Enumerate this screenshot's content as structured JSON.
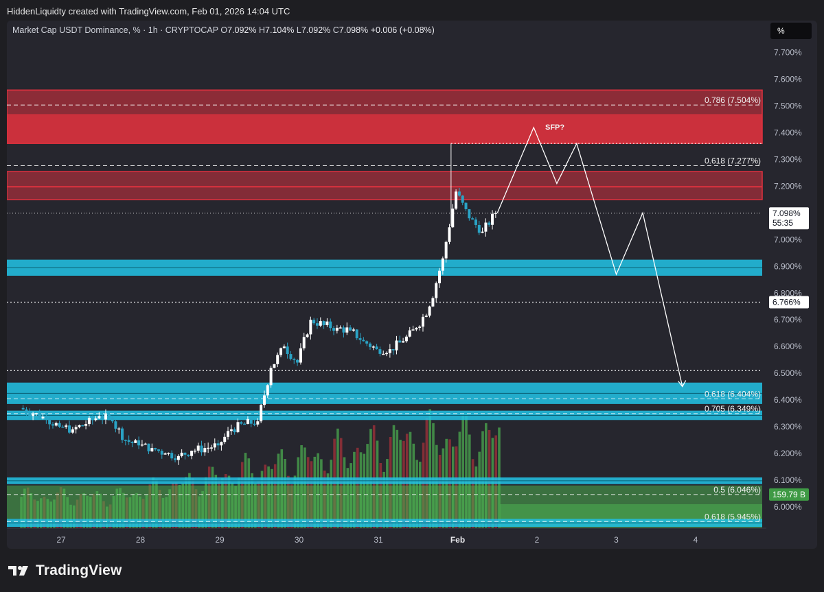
{
  "header": {
    "author_line": "HiddenLiquidty created with TradingView.com, Feb 01, 2026 14:04 UTC"
  },
  "legend": {
    "symbol": "Market Cap USDT Dominance, % · 1h · CRYPTOCAP",
    "o_label": "O",
    "o_value": "7.092%",
    "h_label": "H",
    "h_value": "7.104%",
    "l_label": "L",
    "l_value": "7.092%",
    "c_label": "C",
    "c_value": "7.098%",
    "change": "+0.006 (+0.08%)"
  },
  "unit_button": "%",
  "footer": {
    "brand": "TradingView"
  },
  "colors": {
    "up": "#ffffff",
    "down": "#2aa3c5",
    "resistance": "#e0313f",
    "support": "#22c4e6",
    "volume_up": "#4caf50",
    "volume_down": "#a8323a",
    "background": "#26262e"
  },
  "chart_data": {
    "type": "candlestick",
    "x_ticks": [
      "27",
      "28",
      "29",
      "30",
      "31",
      "Feb",
      "2",
      "3",
      "4"
    ],
    "y_ticks": [
      "7.700%",
      "7.600%",
      "7.500%",
      "7.400%",
      "7.300%",
      "7.200%",
      "7.100%",
      "7.000%",
      "6.900%",
      "6.800%",
      "6.700%",
      "6.600%",
      "6.500%",
      "6.400%",
      "6.300%",
      "6.200%",
      "6.100%",
      "6.000%"
    ],
    "ylim": [
      5.92,
      7.82
    ],
    "last_price": {
      "value": 7.098,
      "label": "7.098%",
      "countdown": "55:35"
    },
    "marked_price": {
      "value": 6.766,
      "label": "6.766%"
    },
    "volume_label": "159.79 B",
    "fib_levels": [
      {
        "label": "0.786 (7.504%)",
        "value": 7.504
      },
      {
        "label": "0.618 (7.277%)",
        "value": 7.277
      },
      {
        "label": "0.618 (6.404%)",
        "value": 6.404
      },
      {
        "label": "0.705 (6.349%)",
        "value": 6.349
      },
      {
        "label": "0.5 (6.046%)",
        "value": 6.046
      },
      {
        "label": "0.618 (5.945%)",
        "value": 5.945
      }
    ],
    "resistance_zones": [
      [
        7.36,
        7.56
      ],
      [
        7.15,
        7.255
      ]
    ],
    "support_zones": [
      [
        6.865,
        6.925
      ],
      [
        6.385,
        6.465
      ],
      [
        6.325,
        6.36
      ],
      [
        6.085,
        6.11
      ],
      [
        5.925,
        5.955
      ]
    ],
    "dotted_levels": [
      7.099,
      6.766,
      6.51,
      7.36
    ],
    "annotation": "SFP?",
    "projection": {
      "x": [
        "Feb 01 12:00",
        "Feb 01 23:00",
        "Feb 02 06:00",
        "Feb 02 12:00",
        "Feb 03 00:00",
        "Feb 03 08:00",
        "Feb 03 20:00"
      ],
      "y": [
        7.1,
        7.42,
        7.21,
        7.36,
        6.87,
        7.1,
        6.45
      ]
    },
    "series": [
      {
        "name": "price",
        "x": [
          "Jan 26 12:00",
          "Jan 26 16:00",
          "Jan 26 20:00",
          "Jan 27 00:00",
          "Jan 27 04:00",
          "Jan 27 08:00",
          "Jan 27 12:00",
          "Jan 27 16:00",
          "Jan 27 20:00",
          "Jan 28 00:00",
          "Jan 28 04:00",
          "Jan 28 08:00",
          "Jan 28 12:00",
          "Jan 28 16:00",
          "Jan 28 20:00",
          "Jan 29 00:00",
          "Jan 29 04:00",
          "Jan 29 08:00",
          "Jan 29 12:00",
          "Jan 29 16:00",
          "Jan 29 20:00",
          "Jan 30 00:00",
          "Jan 30 04:00",
          "Jan 30 08:00",
          "Jan 30 12:00",
          "Jan 30 16:00",
          "Jan 30 20:00",
          "Jan 31 00:00",
          "Jan 31 04:00",
          "Jan 31 08:00",
          "Jan 31 12:00",
          "Jan 31 16:00",
          "Jan 31 20:00",
          "Feb 01 00:00",
          "Feb 01 04:00",
          "Feb 01 08:00",
          "Feb 01 12:00"
        ],
        "y": [
          6.37,
          6.35,
          6.33,
          6.3,
          6.29,
          6.31,
          6.34,
          6.32,
          6.25,
          6.23,
          6.22,
          6.2,
          6.19,
          6.21,
          6.22,
          6.23,
          6.29,
          6.31,
          6.32,
          6.52,
          6.6,
          6.54,
          6.7,
          6.68,
          6.67,
          6.66,
          6.62,
          6.59,
          6.59,
          6.62,
          6.67,
          6.75,
          6.93,
          7.18,
          7.08,
          7.03,
          7.1
        ]
      }
    ]
  }
}
